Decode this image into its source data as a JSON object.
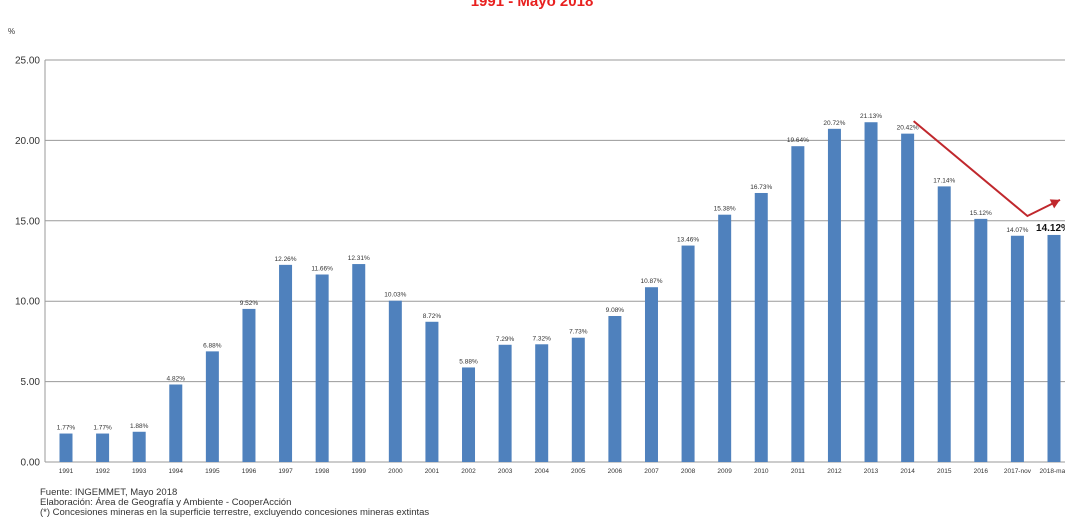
{
  "chart_data": {
    "type": "bar",
    "title": "1991 - Mayo 2018",
    "ylabel": "%",
    "ylim": [
      0,
      25
    ],
    "yticks": [
      "0.00",
      "5.00",
      "10.00",
      "15.00",
      "20.00",
      "25.00"
    ],
    "grid": true,
    "categories": [
      "1991",
      "1992",
      "1993",
      "1994",
      "1995",
      "1996",
      "1997",
      "1998",
      "1999",
      "2000",
      "2001",
      "2002",
      "2003",
      "2004",
      "2005",
      "2006",
      "2007",
      "2008",
      "2009",
      "2010",
      "2011",
      "2012",
      "2013",
      "2014",
      "2015",
      "2016",
      "2017-nov",
      "2018-may"
    ],
    "values": [
      1.77,
      1.77,
      1.88,
      4.82,
      6.88,
      9.52,
      12.26,
      11.66,
      12.31,
      10.03,
      8.72,
      5.88,
      7.29,
      7.32,
      7.73,
      9.08,
      10.87,
      13.46,
      15.38,
      16.73,
      19.64,
      20.72,
      21.13,
      20.42,
      17.14,
      15.12,
      14.07,
      14.12
    ],
    "labels": [
      "1.77%",
      "1.77%",
      "1.88%",
      "4.82%",
      "6.88%",
      "9.52%",
      "12.26%",
      "11.66%",
      "12.31%",
      "10.03%",
      "8.72%",
      "5.88%",
      "7.29%",
      "7.32%",
      "7.73%",
      "9.08%",
      "10.87%",
      "13.46%",
      "15.38%",
      "16.73%",
      "19.64%",
      "20.72%",
      "21.13%",
      "20.42%",
      "17.14%",
      "15.12%",
      "14.07%",
      "14.12%"
    ],
    "bar_color": "#4f81bd",
    "trend_arrow_color": "#c0282d"
  },
  "footer": {
    "source": "Fuente: INGEMMET, Mayo 2018",
    "elaboration": "Elaboración: Área de Geografía y Ambiente - CooperAcción",
    "note": "(*) Concesiones mineras en la superficie terrestre, excluyendo concesiones mineras extintas"
  }
}
